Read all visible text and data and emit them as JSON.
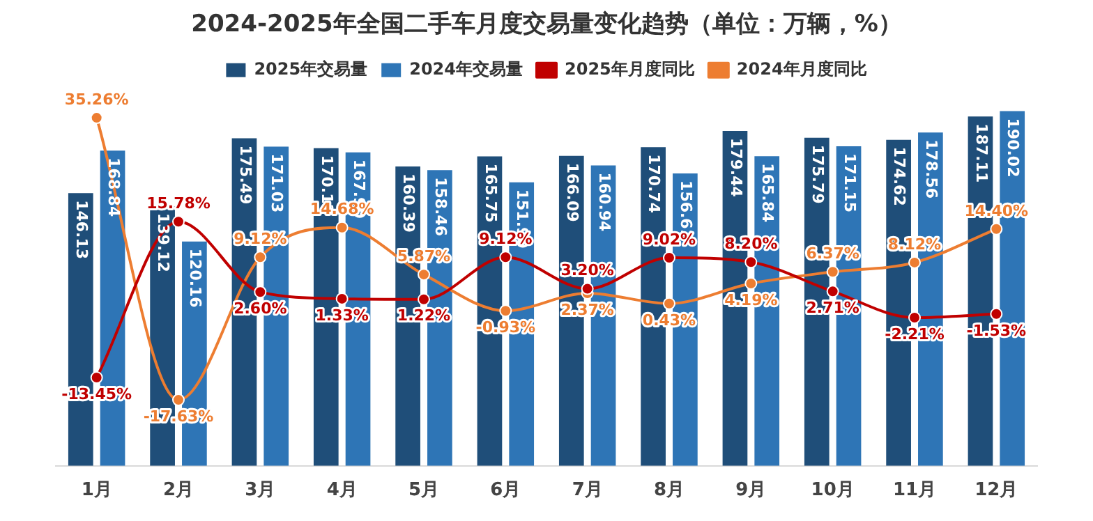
{
  "chart_data": {
    "type": "bar",
    "title": "2024-2025年全国二手车月度交易量变化趋势（单位：万辆，%）",
    "categories": [
      "1月",
      "2月",
      "3月",
      "4月",
      "5月",
      "6月",
      "7月",
      "8月",
      "9月",
      "10月",
      "11月",
      "12月"
    ],
    "series": [
      {
        "name": "2025年交易量",
        "color": "#1f4e79",
        "values": [
          146.13,
          139.12,
          175.49,
          170.13,
          160.39,
          165.75,
          166.09,
          170.74,
          179.44,
          175.79,
          174.62,
          187.11
        ],
        "value_labels": [
          "146.13",
          "139.12",
          "175.49",
          "170.13",
          "160.39",
          "165.75",
          "166.09",
          "170.74",
          "179.44",
          "175.79",
          "174.62",
          "187.11"
        ]
      },
      {
        "name": "2024年交易量",
        "color": "#2e75b6",
        "values": [
          168.84,
          120.16,
          171.03,
          167.9,
          158.46,
          151.9,
          160.94,
          156.61,
          165.84,
          171.15,
          178.56,
          190.02
        ],
        "value_labels": [
          "168.84",
          "120.16",
          "171.03",
          "167.90",
          "158.46",
          "151.90",
          "160.94",
          "156.61",
          "165.84",
          "171.15",
          "178.56",
          "190.02"
        ]
      },
      {
        "name": "2025年月度同比",
        "type": "line",
        "axis": "y2",
        "color": "#c00000",
        "values": [
          -13.45,
          15.78,
          2.6,
          1.33,
          1.22,
          9.12,
          3.2,
          9.02,
          8.2,
          2.71,
          -2.21,
          -1.53
        ],
        "value_labels": [
          "-13.45%",
          "15.78%",
          "2.60%",
          "1.33%",
          "1.22%",
          "9.12%",
          "3.20%",
          "9.02%",
          "8.20%",
          "2.71%",
          "-2.21%",
          "-1.53%"
        ]
      },
      {
        "name": "2024年月度同比",
        "type": "line",
        "axis": "y2",
        "color": "#ed7d31",
        "values": [
          35.26,
          -17.63,
          9.12,
          14.68,
          5.87,
          -0.93,
          2.37,
          0.43,
          4.19,
          6.37,
          8.12,
          14.4
        ],
        "value_labels": [
          "35.26%",
          "-17.63%",
          "9.12%",
          "14.68%",
          "5.87%",
          "-0.93%",
          "2.37%",
          "0.43%",
          "4.19%",
          "6.37%",
          "8.12%",
          "14.40%"
        ]
      }
    ],
    "legend": "top",
    "grid": false,
    "tick_labels": "x",
    "marker": "circle"
  }
}
